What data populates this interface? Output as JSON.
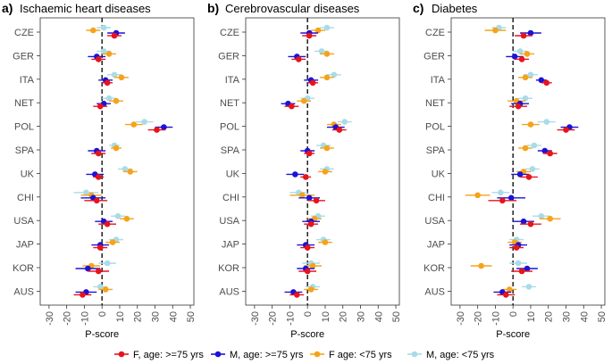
{
  "legend": [
    {
      "name": "F, age: >=75 yrs",
      "color": "#e8131b"
    },
    {
      "name": "M, age: >=75 yrs",
      "color": "#1b13d8"
    },
    {
      "name": "F age: <75 yrs",
      "color": "#f5a31a"
    },
    {
      "name": "M, age: <75 yrs",
      "color": "#a9dbe8"
    }
  ],
  "chart_data": [
    {
      "type": "forest",
      "panel_letter": "a)",
      "title": "Ischaemic heart diseases",
      "xlabel": "P-score",
      "xlim": [
        -35,
        52
      ],
      "xticks": [
        -30,
        -20,
        -10,
        0,
        10,
        20,
        30,
        40,
        50
      ],
      "reference_line": 0,
      "categories": [
        "CZE",
        "GER",
        "ITA",
        "NET",
        "POL",
        "SPA",
        "UK",
        "CHI",
        "USA",
        "JAP",
        "KOR",
        "AUS"
      ],
      "series": [
        {
          "name": "F, age: >=75 yrs",
          "values": [
            7,
            -2,
            3,
            -1,
            31,
            -2,
            -2,
            -3,
            3,
            -1,
            -2,
            -11
          ],
          "ci_low": [
            3,
            -6,
            0,
            -5,
            26,
            -6,
            -5,
            -10,
            -2,
            -5,
            -8,
            -16
          ],
          "ci_high": [
            11,
            2,
            6,
            3,
            36,
            2,
            1,
            3,
            8,
            3,
            4,
            -6
          ]
        },
        {
          "name": "M, age: >=75 yrs",
          "values": [
            8,
            -3,
            2,
            1,
            35,
            -3,
            -4,
            -5,
            1,
            -1,
            -8,
            -9
          ],
          "ci_low": [
            3,
            -8,
            -2,
            -3,
            30,
            -8,
            -9,
            -12,
            -4,
            -6,
            -15,
            -15
          ],
          "ci_high": [
            13,
            2,
            6,
            5,
            40,
            2,
            1,
            2,
            6,
            4,
            -1,
            -3
          ]
        },
        {
          "name": "F age: <75 yrs",
          "values": [
            -5,
            4,
            11,
            8,
            18,
            8,
            16,
            -6,
            14,
            6,
            -6,
            2
          ],
          "ci_low": [
            -9,
            0,
            7,
            4,
            13,
            5,
            12,
            -12,
            10,
            2,
            -11,
            -2
          ],
          "ci_high": [
            -1,
            8,
            15,
            12,
            23,
            11,
            20,
            0,
            18,
            10,
            -1,
            6
          ]
        },
        {
          "name": "M, age: <75 yrs",
          "values": [
            1,
            1,
            7,
            4,
            24,
            7,
            13,
            -9,
            9,
            8,
            3,
            -1
          ],
          "ci_low": [
            -3,
            -3,
            3,
            0,
            19,
            4,
            9,
            -16,
            5,
            4,
            -2,
            -5
          ],
          "ci_high": [
            5,
            5,
            11,
            8,
            29,
            10,
            17,
            -2,
            13,
            12,
            8,
            3
          ]
        }
      ]
    },
    {
      "type": "forest",
      "panel_letter": "b)",
      "title": "Cerebrovascular diseases",
      "xlabel": "P-score",
      "xlim": [
        -35,
        52
      ],
      "xticks": [
        -30,
        -20,
        -10,
        0,
        10,
        20,
        30,
        40,
        50
      ],
      "reference_line": 0,
      "categories": [
        "CZE",
        "GER",
        "ITA",
        "NET",
        "POL",
        "SPA",
        "UK",
        "CHI",
        "USA",
        "JAP",
        "KOR",
        "AUS"
      ],
      "series": [
        {
          "name": "F, age: >=75 yrs",
          "values": [
            1,
            -5,
            3,
            -9,
            18,
            1,
            -1,
            5,
            2,
            0,
            0,
            -6
          ],
          "ci_low": [
            -3,
            -9,
            0,
            -13,
            14,
            -2,
            -4,
            0,
            -2,
            -4,
            -5,
            -10
          ],
          "ci_high": [
            5,
            -1,
            6,
            -5,
            22,
            4,
            2,
            10,
            6,
            4,
            5,
            -2
          ]
        },
        {
          "name": "M, age: >=75 yrs",
          "values": [
            1,
            -6,
            2,
            -11,
            16,
            0,
            -7,
            1,
            2,
            -1,
            -1,
            -8
          ],
          "ci_low": [
            -4,
            -11,
            -2,
            -15,
            11,
            -4,
            -12,
            -5,
            -3,
            -6,
            -6,
            -13
          ],
          "ci_high": [
            6,
            -1,
            6,
            -7,
            21,
            4,
            -2,
            7,
            7,
            4,
            4,
            -3
          ]
        },
        {
          "name": "F age: <75 yrs",
          "values": [
            6,
            11,
            11,
            -2,
            15,
            11,
            10,
            -3,
            4,
            10,
            3,
            2
          ],
          "ci_low": [
            2,
            7,
            7,
            -6,
            11,
            7,
            6,
            -10,
            0,
            6,
            -2,
            -2
          ],
          "ci_high": [
            10,
            15,
            15,
            2,
            19,
            15,
            14,
            4,
            8,
            14,
            8,
            6
          ]
        },
        {
          "name": "M, age: <75 yrs",
          "values": [
            11,
            8,
            15,
            0,
            21,
            9,
            11,
            -5,
            6,
            9,
            2,
            3
          ],
          "ci_low": [
            7,
            4,
            11,
            -4,
            17,
            5,
            7,
            -10,
            2,
            5,
            -3,
            -1
          ],
          "ci_high": [
            15,
            12,
            19,
            4,
            25,
            13,
            15,
            0,
            10,
            13,
            7,
            7
          ]
        }
      ]
    },
    {
      "type": "forest",
      "panel_letter": "c)",
      "title": "Diabetes",
      "xlabel": "P-score",
      "xlim": [
        -35,
        52
      ],
      "xticks": [
        -30,
        -20,
        -10,
        0,
        10,
        20,
        30,
        40,
        50
      ],
      "reference_line": 0,
      "categories": [
        "CZE",
        "GER",
        "ITA",
        "NET",
        "POL",
        "SPA",
        "UK",
        "CHI",
        "USA",
        "JAP",
        "KOR",
        "AUS"
      ],
      "series": [
        {
          "name": "F, age: >=75 yrs",
          "values": [
            6,
            5,
            19,
            3,
            30,
            21,
            9,
            -6,
            10,
            2,
            5,
            -4
          ],
          "ci_low": [
            1,
            1,
            16,
            -2,
            25,
            17,
            4,
            -14,
            4,
            -2,
            -1,
            -9
          ],
          "ci_high": [
            11,
            9,
            22,
            8,
            35,
            25,
            14,
            2,
            16,
            6,
            11,
            1
          ]
        },
        {
          "name": "M, age: >=75 yrs",
          "values": [
            10,
            1,
            16,
            4,
            32,
            18,
            4,
            -1,
            6,
            3,
            8,
            -6
          ],
          "ci_low": [
            4,
            -4,
            13,
            -1,
            27,
            14,
            -1,
            -9,
            0,
            -2,
            2,
            -11
          ],
          "ci_high": [
            16,
            6,
            19,
            9,
            37,
            22,
            9,
            7,
            12,
            8,
            14,
            -1
          ]
        },
        {
          "name": "F age: <75 yrs",
          "values": [
            -10,
            8,
            7,
            2,
            10,
            7,
            6,
            -20,
            21,
            1,
            -18,
            -2
          ],
          "ci_low": [
            -16,
            4,
            3,
            -3,
            5,
            3,
            2,
            -27,
            15,
            -3,
            -24,
            -6
          ],
          "ci_high": [
            -4,
            12,
            11,
            7,
            15,
            11,
            10,
            -13,
            27,
            5,
            -12,
            2
          ]
        },
        {
          "name": "M, age: <75 yrs",
          "values": [
            -8,
            4,
            10,
            7,
            19,
            12,
            11,
            -7,
            16,
            2,
            3,
            9
          ],
          "ci_low": [
            -12,
            0,
            6,
            3,
            14,
            8,
            7,
            -12,
            11,
            -2,
            -2,
            5
          ],
          "ci_high": [
            -4,
            8,
            14,
            11,
            24,
            16,
            15,
            -2,
            21,
            6,
            8,
            13
          ]
        }
      ]
    }
  ]
}
